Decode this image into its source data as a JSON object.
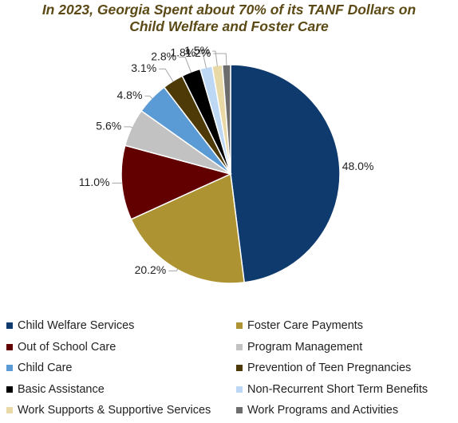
{
  "title_line1": "In 2023, Georgia Spent about 70% of its TANF Dollars on",
  "title_line2": "Child Welfare and Foster Care",
  "chart_data": {
    "type": "pie",
    "title": "In 2023, Georgia Spent about 70% of its TANF Dollars on Child Welfare and Foster Care",
    "start_angle_deg": 90,
    "direction": "clockwise",
    "legend_position": "bottom",
    "slices": [
      {
        "name": "Child Welfare Services",
        "value": 48.0,
        "label": "48.0%",
        "color": "#0f3a6e"
      },
      {
        "name": "Foster Care Payments",
        "value": 20.2,
        "label": "20.2%",
        "color": "#ae9332"
      },
      {
        "name": "Out of School Care",
        "value": 11.0,
        "label": "11.0%",
        "color": "#620000"
      },
      {
        "name": "Program Management",
        "value": 5.6,
        "label": "5.6%",
        "color": "#c2c2c2"
      },
      {
        "name": "Child Care",
        "value": 4.8,
        "label": "4.8%",
        "color": "#5b9bd5"
      },
      {
        "name": "Prevention of Teen Pregnancies",
        "value": 3.1,
        "label": "3.1%",
        "color": "#4d3a06"
      },
      {
        "name": "Basic Assistance",
        "value": 2.8,
        "label": "2.8%",
        "color": "#000000"
      },
      {
        "name": "Non-Recurrent Short Term Benefits",
        "value": 1.8,
        "label": "1.8%",
        "color": "#bcd8f4"
      },
      {
        "name": "Work Supports & Supportive Services",
        "value": 1.5,
        "label": "1.5%",
        "color": "#e8d9a6"
      },
      {
        "name": "Work Programs and Activities",
        "value": 1.2,
        "label": "1.2%",
        "color": "#6d6d6d"
      }
    ]
  }
}
